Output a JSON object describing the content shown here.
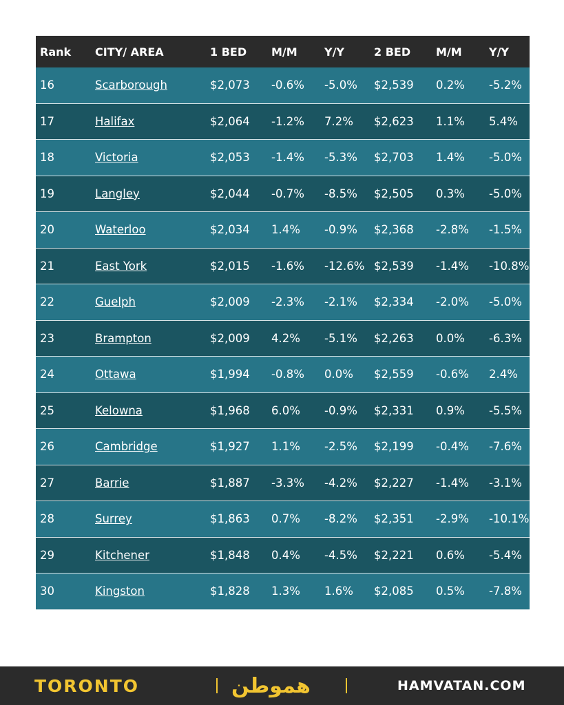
{
  "table": {
    "header": [
      "Rank",
      "CITY/ AREA",
      "1 BED",
      "M/M",
      "Y/Y",
      "2 BED",
      "M/M",
      "Y/Y"
    ],
    "rows": [
      [
        "16",
        "Scarborough",
        "$2,073",
        "-0.6%",
        "-5.0%",
        "$2,539",
        "0.2%",
        "-5.2%"
      ],
      [
        "17",
        "Halifax",
        "$2,064",
        "-1.2%",
        "7.2%",
        "$2,623",
        "1.1%",
        "5.4%"
      ],
      [
        "18",
        "Victoria",
        "$2,053",
        "-1.4%",
        "-5.3%",
        "$2,703",
        "1.4%",
        "-5.0%"
      ],
      [
        "19",
        "Langley",
        "$2,044",
        "-0.7%",
        "-8.5%",
        "$2,505",
        "0.3%",
        "-5.0%"
      ],
      [
        "20",
        "Waterloo",
        "$2,034",
        "1.4%",
        "-0.9%",
        "$2,368",
        "-2.8%",
        "-1.5%"
      ],
      [
        "21",
        "East York",
        "$2,015",
        "-1.6%",
        "-12.6%",
        "$2,539",
        "-1.4%",
        "-10.8%"
      ],
      [
        "22",
        "Guelph",
        "$2,009",
        "-2.3%",
        "-2.1%",
        "$2,334",
        "-2.0%",
        "-5.0%"
      ],
      [
        "23",
        "Brampton",
        "$2,009",
        "4.2%",
        "-5.1%",
        "$2,263",
        "0.0%",
        "-6.3%"
      ],
      [
        "24",
        "Ottawa",
        "$1,994",
        "-0.8%",
        "0.0%",
        "$2,559",
        "-0.6%",
        "2.4%"
      ],
      [
        "25",
        "Kelowna",
        "$1,968",
        "6.0%",
        "-0.9%",
        "$2,331",
        "0.9%",
        "-5.5%"
      ],
      [
        "26",
        "Cambridge",
        "$1,927",
        "1.1%",
        "-2.5%",
        "$2,199",
        "-0.4%",
        "-7.6%"
      ],
      [
        "27",
        "Barrie",
        "$1,887",
        "-3.3%",
        "-4.2%",
        "$2,227",
        "-1.4%",
        "-3.1%"
      ],
      [
        "28",
        "Surrey",
        "$1,863",
        "0.7%",
        "-8.2%",
        "$2,351",
        "-2.9%",
        "-10.1%"
      ],
      [
        "29",
        "Kitchener",
        "$1,848",
        "0.4%",
        "-4.5%",
        "$2,221",
        "0.6%",
        "-5.4%"
      ],
      [
        "30",
        "Kingston",
        "$1,828",
        "1.3%",
        "1.6%",
        "$2,085",
        "0.5%",
        "-7.8%"
      ]
    ]
  },
  "footer": {
    "city": "TORONTO",
    "logo": "هموطن",
    "site": "HAMVATAN.COM"
  }
}
